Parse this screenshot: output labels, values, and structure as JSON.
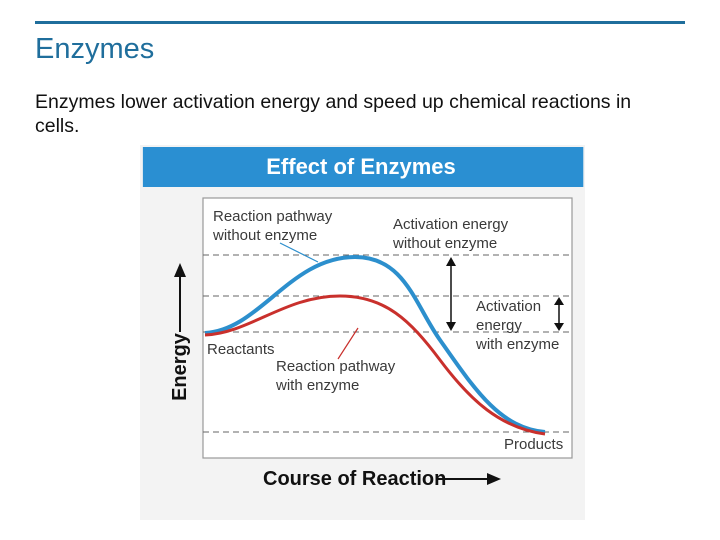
{
  "slide": {
    "title": "Enzymes",
    "body": "Enzymes lower activation energy and speed up chemical reactions in cells."
  },
  "figure": {
    "title": "Effect of Enzymes",
    "y_axis_label": "Energy",
    "x_axis_label": "Course of Reaction",
    "labels": {
      "pathway_without_line1": "Reaction pathway",
      "pathway_without_line2": "without enzyme",
      "activation_without_line1": "Activation energy",
      "activation_without_line2": "without enzyme",
      "activation_with_line1": "Activation",
      "activation_with_line2": "energy",
      "activation_with_line3": "with enzyme",
      "reactants": "Reactants",
      "pathway_with_line1": "Reaction pathway",
      "pathway_with_line2": "with enzyme",
      "products": "Products"
    },
    "colors": {
      "header": "#2a8fd2",
      "without_enzyme_curve": "#2c8fcd",
      "with_enzyme_curve": "#c9302c",
      "panel_background": "#f3f3f3"
    }
  }
}
